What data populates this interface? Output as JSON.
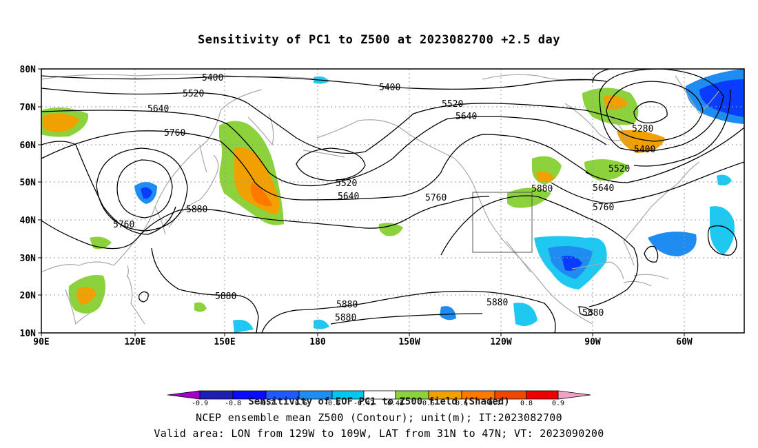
{
  "title": "Sensitivity of PC1 to Z500 at 2023082700 +2.5 day",
  "lat_labels": [
    "80N",
    "70N",
    "60N",
    "50N",
    "40N",
    "30N",
    "20N",
    "10N"
  ],
  "lon_labels": [
    "90E",
    "120E",
    "150E",
    "180",
    "150W",
    "120W",
    "90W",
    "60W"
  ],
  "contour_labels": [
    "5400",
    "5400",
    "5520",
    "5520",
    "5520",
    "5640",
    "5640",
    "5640",
    "5760",
    "5760",
    "5760",
    "5880",
    "5880",
    "5880",
    "5880",
    "5880",
    "5880",
    "5280",
    "5400",
    "5520",
    "5640",
    "5760",
    "5880"
  ],
  "colorbar": {
    "title": "Sensitivity of EOF PC1 to Z500 field (Shaded)",
    "ticks": [
      "-0.9",
      "-0.8",
      "-0.7",
      "-0.6",
      "-0.5",
      "-0.42",
      "0.42",
      "0.5",
      "0.6",
      "0.7",
      "0.8",
      "0.9"
    ],
    "colors": [
      "#a000c8",
      "#1e1eb4",
      "#0a0aff",
      "#1e5aff",
      "#1e8cf0",
      "#00c8f0",
      "#ffffff",
      "#8cd23c",
      "#f0a000",
      "#ff7800",
      "#f04600",
      "#f00000",
      "#f5a0c8"
    ]
  },
  "footer_line1": "NCEP ensemble mean Z500 (Contour); unit(m); IT:2023082700",
  "footer_line2": "Valid area: LON from 129W to 109W, LAT from 31N to 47N; VT: 2023090200",
  "colors": {
    "coast": "#a8a8a8",
    "contour": "#000000",
    "pos_green": "#8cd23c",
    "pos_orange": "#f0a000",
    "pos_red": "#ff7800",
    "neg_light": "#1ec8f0",
    "neg_mid": "#1e8cf0",
    "neg_dark": "#0a3cff"
  }
}
